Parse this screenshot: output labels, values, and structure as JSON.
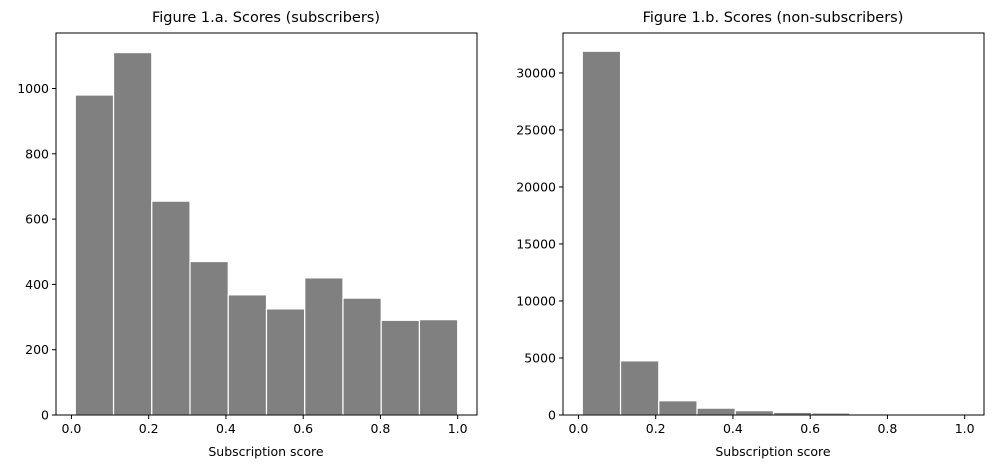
{
  "chart_data": [
    {
      "type": "bar",
      "title": "Figure 1.a. Scores (subscribers)",
      "xlabel": "Subscription score",
      "ylabel": "",
      "bin_edges": [
        0.01,
        0.109,
        0.208,
        0.307,
        0.406,
        0.505,
        0.604,
        0.703,
        0.802,
        0.901,
        1.0
      ],
      "values": [
        980,
        1110,
        655,
        470,
        368,
        325,
        420,
        358,
        290,
        292
      ],
      "xlim": [
        -0.04,
        1.05
      ],
      "ylim": [
        0,
        1170
      ],
      "xticks": [
        0.0,
        0.2,
        0.4,
        0.6,
        0.8,
        1.0
      ],
      "xtick_labels": [
        "0.0",
        "0.2",
        "0.4",
        "0.6",
        "0.8",
        "1.0"
      ],
      "yticks": [
        0,
        200,
        400,
        600,
        800,
        1000
      ],
      "ytick_labels": [
        "0",
        "200",
        "400",
        "600",
        "800",
        "1000"
      ],
      "grid": false,
      "bar_color": "#808080",
      "edge_color": "#ffffff"
    },
    {
      "type": "bar",
      "title": "Figure 1.b. Scores (non-subscribers)",
      "xlabel": "Subscription score",
      "ylabel": "",
      "bin_edges": [
        0.01,
        0.109,
        0.208,
        0.307,
        0.406,
        0.505,
        0.604,
        0.703,
        0.802,
        0.901,
        1.0
      ],
      "values": [
        31900,
        4750,
        1250,
        600,
        380,
        230,
        180,
        110,
        80,
        70
      ],
      "xlim": [
        -0.04,
        1.05
      ],
      "ylim": [
        0,
        33500
      ],
      "xticks": [
        0.0,
        0.2,
        0.4,
        0.6,
        0.8,
        1.0
      ],
      "xtick_labels": [
        "0.0",
        "0.2",
        "0.4",
        "0.6",
        "0.8",
        "1.0"
      ],
      "yticks": [
        0,
        5000,
        10000,
        15000,
        20000,
        25000,
        30000
      ],
      "ytick_labels": [
        "0",
        "5000",
        "10000",
        "15000",
        "20000",
        "25000",
        "30000"
      ],
      "grid": false,
      "bar_color": "#808080",
      "edge_color": "#ffffff"
    }
  ]
}
